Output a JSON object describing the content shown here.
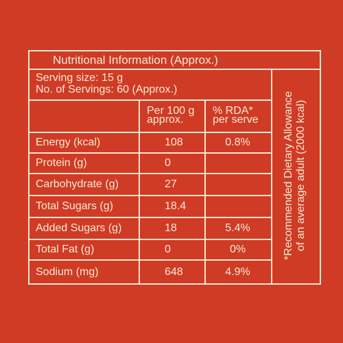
{
  "title": "Nutritional Information (Approx.)",
  "serving": [
    "Serving size: 15 g",
    "No. of Servings: 60 (Approx.)"
  ],
  "table": {
    "header": [
      [
        "Per 100 g",
        "approx."
      ],
      [
        "% RDA*",
        "per serve"
      ]
    ],
    "rows": [
      [
        "Energy (kcal)",
        "108",
        "0.8%"
      ],
      [
        "Protein (g)",
        "0"
      ],
      [
        "Carbohydrate (g)",
        "27"
      ],
      [
        "Total Sugars (g)",
        "18.4"
      ],
      [
        "Added Sugars (g)",
        "18",
        "5.4%"
      ],
      [
        "Total Fat (g)",
        "0",
        "0%"
      ],
      [
        "Sodium (mg)",
        "648",
        "4.9%"
      ]
    ]
  },
  "footnote": [
    "*Recommended Dietary Allowance",
    "of an average adult (2000 kcal)"
  ]
}
